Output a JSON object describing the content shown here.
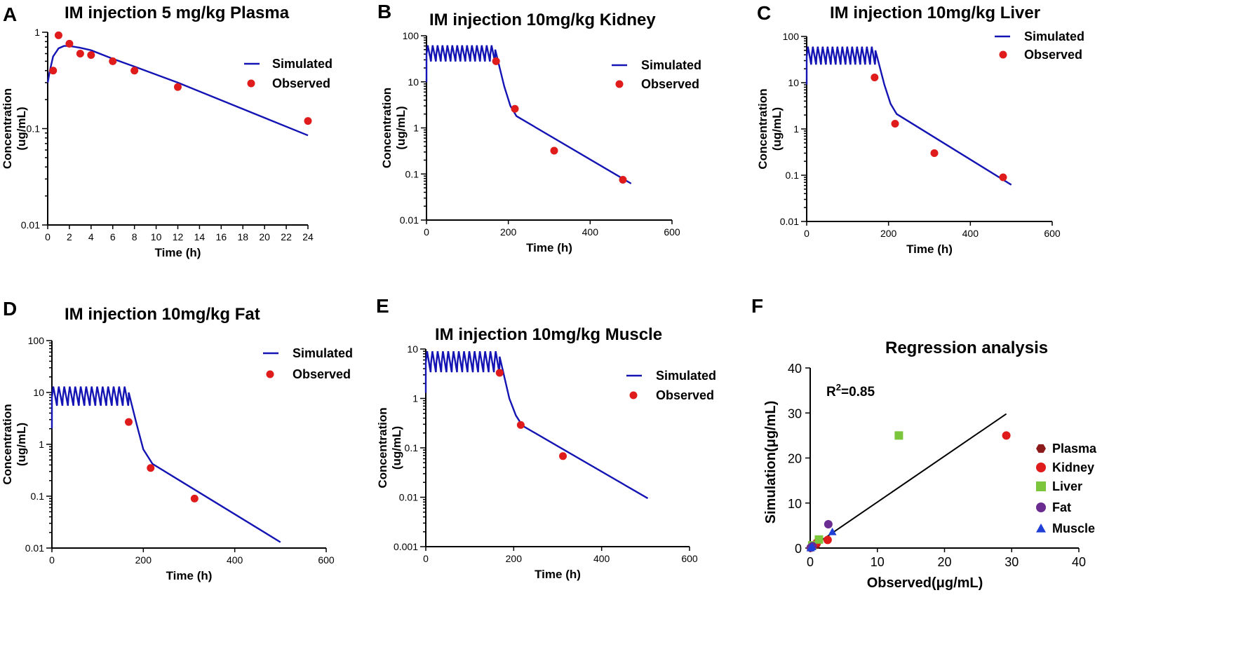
{
  "chart_data": [
    {
      "panel": "A",
      "type": "line",
      "title": "IM injection 5 mg/kg Plasma",
      "xlabel": "Time (h)",
      "ylabel_line1": "Concentration",
      "ylabel_line2": "(ug/mL)",
      "yscale": "log",
      "xlim": [
        0,
        24
      ],
      "ylim": [
        0.01,
        1
      ],
      "xticks": [
        "0",
        "2",
        "4",
        "6",
        "8",
        "10",
        "12",
        "14",
        "16",
        "18",
        "20",
        "22",
        "24"
      ],
      "yticks": [
        "0.01",
        "0.1",
        "1"
      ],
      "dosing": "single",
      "series": [
        {
          "name": "Simulated",
          "kind": "line",
          "color": "#1414b4",
          "x": [
            0,
            0.2,
            0.5,
            1,
            1.5,
            2,
            3,
            4,
            6,
            8,
            12,
            24
          ],
          "y": [
            0.3,
            0.4,
            0.56,
            0.68,
            0.72,
            0.72,
            0.69,
            0.65,
            0.53,
            0.44,
            0.3,
            0.085
          ]
        },
        {
          "name": "Observed",
          "kind": "scatter",
          "color": "#e01b1b",
          "x": [
            0.5,
            1,
            2,
            3,
            4,
            6,
            8,
            12,
            24
          ],
          "y": [
            0.4,
            0.93,
            0.76,
            0.6,
            0.58,
            0.5,
            0.4,
            0.27,
            0.12
          ]
        }
      ],
      "legend": [
        "Simulated",
        "Observed"
      ]
    },
    {
      "panel": "B",
      "type": "line",
      "title": "IM injection 10mg/kg Kidney",
      "xlabel": "Time (h)",
      "ylabel_line1": "Concentration",
      "ylabel_line2": "(ug/mL)",
      "yscale": "log",
      "xlim": [
        0,
        600
      ],
      "ylim": [
        0.01,
        100
      ],
      "xticks": [
        "0",
        "200",
        "400",
        "600"
      ],
      "yticks": [
        "0.01",
        "0.1",
        "1",
        "10",
        "100"
      ],
      "dosing": "repeated",
      "series": [
        {
          "name": "Simulated",
          "kind": "line",
          "color": "#1414b4",
          "x": [
            168,
            190,
            205,
            220,
            500
          ],
          "y": [
            50,
            8,
            3,
            1.8,
            0.062
          ],
          "oscillation": {
            "start": 0,
            "end": 168,
            "period": 12,
            "min": 25,
            "max": 62
          }
        },
        {
          "name": "Observed",
          "kind": "scatter",
          "color": "#e01b1b",
          "x": [
            170,
            216,
            312,
            480
          ],
          "y": [
            28,
            2.6,
            0.32,
            0.075
          ]
        }
      ],
      "legend": [
        "Simulated",
        "Observed"
      ]
    },
    {
      "panel": "C",
      "type": "line",
      "title": "IM injection 10mg/kg Liver",
      "xlabel": "Time (h)",
      "ylabel_line1": "Concentration",
      "ylabel_line2": "(ug/mL)",
      "yscale": "log",
      "xlim": [
        0,
        600
      ],
      "ylim": [
        0.01,
        100
      ],
      "xticks": [
        "0",
        "200",
        "400",
        "600"
      ],
      "yticks": [
        "0.01",
        "0.1",
        "1",
        "10",
        "100"
      ],
      "dosing": "repeated",
      "series": [
        {
          "name": "Simulated",
          "kind": "line",
          "color": "#1414b4",
          "x": [
            168,
            190,
            205,
            220,
            500
          ],
          "y": [
            50,
            9,
            3.5,
            2.1,
            0.062
          ],
          "oscillation": {
            "start": 0,
            "end": 168,
            "period": 12,
            "min": 22,
            "max": 60
          }
        },
        {
          "name": "Observed",
          "kind": "scatter",
          "color": "#e01b1b",
          "x": [
            166,
            216,
            312,
            480
          ],
          "y": [
            13,
            1.3,
            0.3,
            0.09
          ]
        }
      ],
      "legend": [
        "Simulated",
        "Observed"
      ]
    },
    {
      "panel": "D",
      "type": "line",
      "title": "IM injection 10mg/kg Fat",
      "xlabel": "Time (h)",
      "ylabel_line1": "Concentration",
      "ylabel_line2": "(ug/mL)",
      "yscale": "log",
      "xlim": [
        0,
        600
      ],
      "ylim": [
        0.01,
        100
      ],
      "xticks": [
        "0",
        "200",
        "400",
        "600"
      ],
      "yticks": [
        "0.01",
        "0.1",
        "1",
        "10",
        "100"
      ],
      "dosing": "repeated",
      "series": [
        {
          "name": "Simulated",
          "kind": "line",
          "color": "#1414b4",
          "x": [
            168,
            185,
            200,
            220,
            500
          ],
          "y": [
            10,
            2.5,
            0.8,
            0.42,
            0.013
          ],
          "oscillation": {
            "start": 0,
            "end": 168,
            "period": 12,
            "min": 5,
            "max": 13
          }
        },
        {
          "name": "Observed",
          "kind": "scatter",
          "color": "#e01b1b",
          "x": [
            168,
            216,
            312
          ],
          "y": [
            2.7,
            0.35,
            0.09
          ]
        }
      ],
      "legend": [
        "Simulated",
        "Observed"
      ]
    },
    {
      "panel": "E",
      "type": "line",
      "title": "IM injection 10mg/kg Muscle",
      "xlabel": "Time (h)",
      "ylabel_line1": "Concentration",
      "ylabel_line2": "(ug/mL)",
      "yscale": "log",
      "xlim": [
        0,
        600
      ],
      "ylim": [
        0.001,
        10
      ],
      "xticks": [
        "0",
        "200",
        "400",
        "600"
      ],
      "yticks": [
        "0.001",
        "0.01",
        "0.1",
        "1",
        "10"
      ],
      "dosing": "repeated",
      "series": [
        {
          "name": "Simulated",
          "kind": "line",
          "color": "#1414b4",
          "x": [
            168,
            190,
            205,
            220,
            505
          ],
          "y": [
            7,
            1.0,
            0.45,
            0.28,
            0.0095
          ],
          "oscillation": {
            "start": 0,
            "end": 168,
            "period": 12,
            "min": 3,
            "max": 9
          }
        },
        {
          "name": "Observed",
          "kind": "scatter",
          "color": "#e01b1b",
          "x": [
            168,
            216,
            312
          ],
          "y": [
            3.3,
            0.29,
            0.068
          ]
        }
      ],
      "legend": [
        "Simulated",
        "Observed"
      ]
    },
    {
      "panel": "F",
      "type": "scatter",
      "title": "Regression analysis",
      "xlabel": "Observed(μg/mL)",
      "ylabel": "Simulation(μg/mL)",
      "xlim": [
        0,
        40
      ],
      "ylim": [
        0,
        40
      ],
      "xticks": [
        "0",
        "10",
        "20",
        "30",
        "40"
      ],
      "yticks": [
        "0",
        "10",
        "20",
        "30",
        "40"
      ],
      "annotation": {
        "base": "R",
        "sup": "2",
        "rest": "=0.85"
      },
      "regression_line": {
        "x": [
          0,
          29.2
        ],
        "y": [
          0,
          29.8
        ]
      },
      "series": [
        {
          "name": "Plasma",
          "marker": "hexagon",
          "color": "#8b1a1a",
          "x": [
            0.12,
            0.27,
            0.4,
            0.5,
            0.6,
            0.93
          ],
          "y": [
            0.08,
            0.3,
            0.44,
            0.53,
            0.65,
            0.68
          ]
        },
        {
          "name": "Kidney",
          "marker": "circle",
          "color": "#e01b1b",
          "x": [
            0.08,
            0.32,
            1.0,
            2.6,
            29.2
          ],
          "y": [
            0.06,
            0.6,
            1.2,
            1.8,
            25
          ]
        },
        {
          "name": "Liver",
          "marker": "square",
          "color": "#7cc63e",
          "x": [
            0.3,
            1.3,
            13.2
          ],
          "y": [
            0.6,
            1.9,
            25
          ]
        },
        {
          "name": "Fat",
          "marker": "circle",
          "color": "#6a2c91",
          "x": [
            0.09,
            0.35,
            2.7
          ],
          "y": [
            0.12,
            0.42,
            5.3
          ]
        },
        {
          "name": "Muscle",
          "marker": "triangle",
          "color": "#1f3fd6",
          "x": [
            0.07,
            0.29,
            3.3
          ],
          "y": [
            0.03,
            0.28,
            3.6
          ]
        }
      ],
      "legend": [
        "Plasma",
        "Kidney",
        "Liver",
        "Fat",
        "Muscle"
      ]
    }
  ]
}
